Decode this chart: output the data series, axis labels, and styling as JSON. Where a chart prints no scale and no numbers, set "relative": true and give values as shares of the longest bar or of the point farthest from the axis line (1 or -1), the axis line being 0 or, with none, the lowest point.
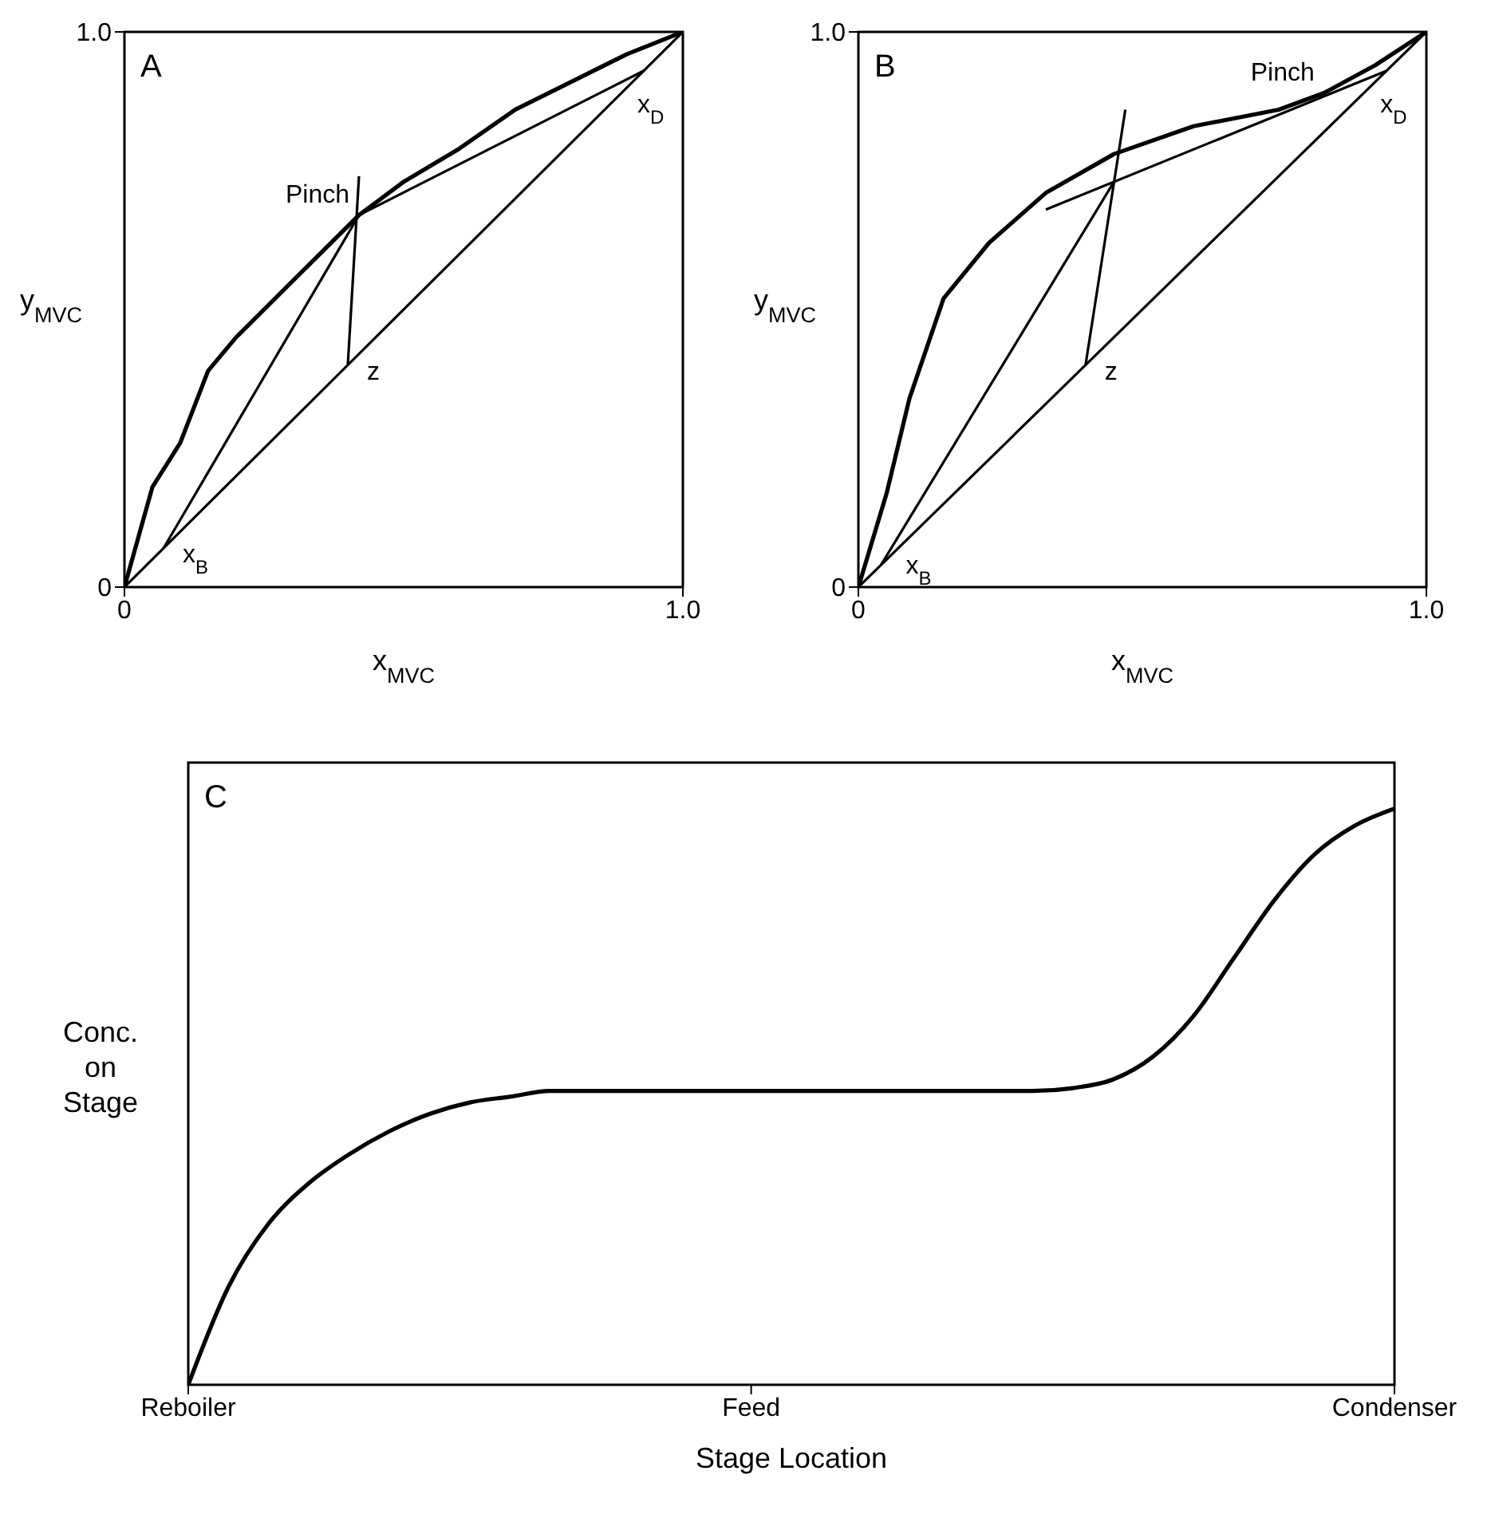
{
  "chart_data": [
    {
      "type": "line",
      "xlabel": "x$_{MVC}$",
      "ylabel": "y$_{MVC}$",
      "xlim": [
        0,
        1
      ],
      "ylim": [
        0,
        1
      ],
      "xticks": [
        0,
        {
          "value": 1,
          "label": "1.0"
        }
      ],
      "yticks": [
        0,
        {
          "value": 1,
          "label": "1.0"
        }
      ],
      "annotations": [
        "A",
        {
          "text": "Pinch",
          "x": 0.42,
          "y": 0.67
        },
        {
          "text": "z",
          "x": 0.4,
          "y": 0.4
        },
        {
          "text": "x$_{B}$",
          "x": 0.07,
          "y": 0.07
        },
        {
          "text": "x$_{D}$",
          "x": 0.93,
          "y": 0.93
        }
      ],
      "series": [
        {
          "color": "#000000",
          "x": [
            0,
            0.05,
            0.1,
            0.15,
            0.2,
            0.3,
            0.42,
            0.5,
            0.6,
            0.7,
            0.8,
            0.9,
            1
          ],
          "values": [
            0,
            0.18,
            0.26,
            0.39,
            0.45,
            0.55,
            0.67,
            0.73,
            0.79,
            0.86,
            0.91,
            0.96,
            1
          ]
        },
        {
          "color": "#000000",
          "x": [
            0,
            1
          ],
          "values": [
            0,
            1
          ]
        },
        {
          "color": "#000000",
          "x": [
            0.07,
            0.42
          ],
          "values": [
            0.07,
            0.67
          ]
        },
        {
          "color": "#000000",
          "x": [
            0.42,
            0.93
          ],
          "values": [
            0.67,
            0.93
          ]
        },
        {
          "color": "#000000",
          "x": [
            0.4,
            0.42
          ],
          "values": [
            0.4,
            0.74
          ]
        }
      ]
    },
    {
      "type": "line",
      "xlabel": "x$_{MVC}$",
      "ylabel": "y$_{MVC}$",
      "xlim": [
        0,
        1
      ],
      "ylim": [
        0,
        1
      ],
      "xticks": [
        0,
        {
          "value": 1,
          "label": "1.0"
        }
      ],
      "yticks": [
        0,
        {
          "value": 1,
          "label": "1.0"
        }
      ],
      "annotations": [
        "B",
        {
          "text": "Pinch",
          "x": 0.82,
          "y": 0.89
        },
        {
          "text": "z",
          "x": 0.4,
          "y": 0.4
        },
        {
          "text": "x$_{B}$",
          "x": 0.05,
          "y": 0.05
        },
        {
          "text": "x$_{D}$",
          "x": 0.93,
          "y": 0.93
        }
      ],
      "series": [
        {
          "color": "#000000",
          "x": [
            0,
            0.05,
            0.09,
            0.15,
            0.23,
            0.33,
            0.45,
            0.59,
            0.74,
            0.82,
            0.91,
            1
          ],
          "values": [
            0,
            0.17,
            0.34,
            0.52,
            0.62,
            0.71,
            0.78,
            0.83,
            0.86,
            0.89,
            0.94,
            1
          ]
        },
        {
          "color": "#000000",
          "x": [
            0,
            1
          ],
          "values": [
            0,
            1
          ]
        },
        {
          "color": "#000000",
          "x": [
            0.04,
            0.45
          ],
          "values": [
            0.04,
            0.73
          ]
        },
        {
          "color": "#000000",
          "x": [
            0.33,
            0.93
          ],
          "values": [
            0.68,
            0.93
          ]
        },
        {
          "color": "#000000",
          "x": [
            0.4,
            0.47
          ],
          "values": [
            0.4,
            0.86
          ]
        }
      ]
    },
    {
      "type": "line",
      "relative": true,
      "xlabel": "Stage Location",
      "ylabel": "Conc. on Stage",
      "tick_labels": "x",
      "categories": [
        "Reboiler",
        null,
        null,
        null,
        null,
        null,
        null,
        null,
        null,
        null,
        null,
        null,
        null,
        null,
        "Feed",
        null,
        null,
        null,
        null,
        null,
        null,
        null,
        null,
        null,
        null,
        null,
        null,
        null,
        null,
        null,
        "Condenser"
      ],
      "annotations": [
        "C"
      ],
      "series": [
        {
          "color": "#000000",
          "values": [
            0,
            0.17,
            0.28,
            0.35,
            0.4,
            0.44,
            0.47,
            0.49,
            0.5,
            0.51,
            0.51,
            0.51,
            0.51,
            0.51,
            0.51,
            0.51,
            0.51,
            0.51,
            0.51,
            0.51,
            0.51,
            0.51,
            0.515,
            0.53,
            0.57,
            0.64,
            0.74,
            0.84,
            0.92,
            0.97,
            1
          ]
        }
      ]
    }
  ]
}
